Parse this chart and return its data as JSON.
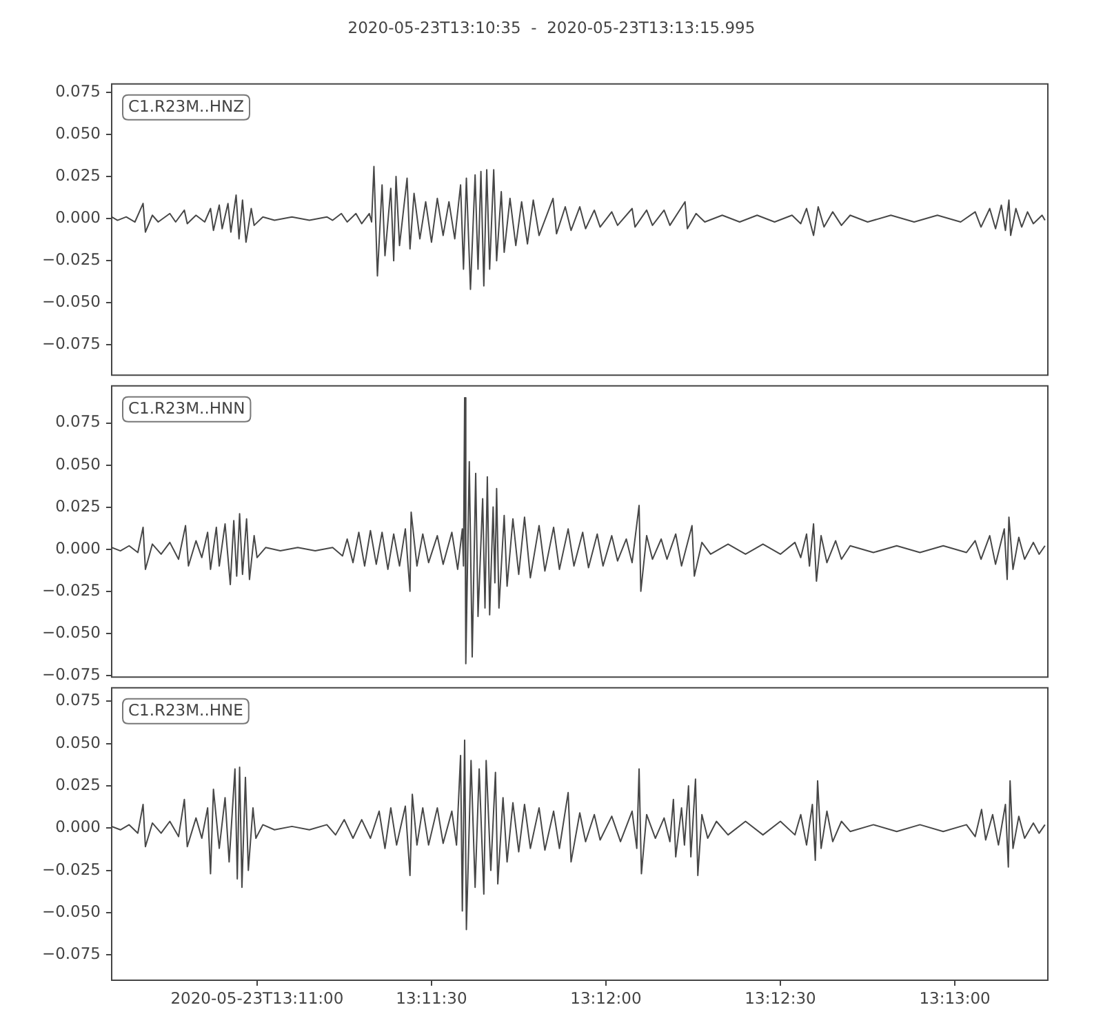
{
  "chart_data": [
    {
      "type": "line",
      "title": "2020-05-23T13:10:35  -  2020-05-23T13:13:15.995",
      "annotations": [
        "C1.R23M..HNZ"
      ],
      "tick_labels": "y",
      "xlim": [
        "2020-05-23T13:10:35",
        "2020-05-23T13:13:15.995"
      ],
      "ylim": [
        -0.093,
        0.08
      ],
      "yticks": [
        {
          "value": -0.075,
          "label": "−0.075"
        },
        {
          "value": -0.05,
          "label": "−0.050"
        },
        {
          "value": -0.025,
          "label": "−0.025"
        },
        {
          "value": 0,
          "label": "0.000"
        },
        {
          "value": 0.025,
          "label": "0.025"
        },
        {
          "value": 0.05,
          "label": "0.050"
        },
        {
          "value": 0.075,
          "label": "0.075"
        }
      ],
      "series": [
        {
          "color": "#474747",
          "x": [
            "2020-05-23T13:10:35",
            "2020-05-23T13:10:36",
            "2020-05-23T13:10:37.5",
            "2020-05-23T13:10:39",
            "2020-05-23T13:10:40.4",
            "2020-05-23T13:10:40.8",
            "2020-05-23T13:10:42",
            "2020-05-23T13:10:43",
            "2020-05-23T13:10:45",
            "2020-05-23T13:10:46",
            "2020-05-23T13:10:47.5",
            "2020-05-23T13:10:48",
            "2020-05-23T13:10:49.5",
            "2020-05-23T13:10:51",
            "2020-05-23T13:10:52",
            "2020-05-23T13:10:52.5",
            "2020-05-23T13:10:53.5",
            "2020-05-23T13:10:54",
            "2020-05-23T13:10:55",
            "2020-05-23T13:10:55.5",
            "2020-05-23T13:10:56.4",
            "2020-05-23T13:10:56.9",
            "2020-05-23T13:10:57.5",
            "2020-05-23T13:10:58.1",
            "2020-05-23T13:10:59",
            "2020-05-23T13:10:59.5",
            "2020-05-23T13:11:01",
            "2020-05-23T13:11:03",
            "2020-05-23T13:11:06",
            "2020-05-23T13:11:09",
            "2020-05-23T13:11:12",
            "2020-05-23T13:11:13",
            "2020-05-23T13:11:14.5",
            "2020-05-23T13:11:15.5",
            "2020-05-23T13:11:17",
            "2020-05-23T13:11:18",
            "2020-05-23T13:11:19.3",
            "2020-05-23T13:11:19.7",
            "2020-05-23T13:11:20.1",
            "2020-05-23T13:11:20.7",
            "2020-05-23T13:11:21.5",
            "2020-05-23T13:11:22",
            "2020-05-23T13:11:23",
            "2020-05-23T13:11:23.5",
            "2020-05-23T13:11:23.9",
            "2020-05-23T13:11:24.5",
            "2020-05-23T13:11:25.8",
            "2020-05-23T13:11:26.3",
            "2020-05-23T13:11:27",
            "2020-05-23T13:11:28",
            "2020-05-23T13:11:29",
            "2020-05-23T13:11:30",
            "2020-05-23T13:11:31",
            "2020-05-23T13:11:32",
            "2020-05-23T13:11:33",
            "2020-05-23T13:11:34",
            "2020-05-23T13:11:35",
            "2020-05-23T13:11:35.5",
            "2020-05-23T13:11:36",
            "2020-05-23T13:11:36.7",
            "2020-05-23T13:11:37.5",
            "2020-05-23T13:11:38",
            "2020-05-23T13:11:38.5",
            "2020-05-23T13:11:39",
            "2020-05-23T13:11:39.5",
            "2020-05-23T13:11:40",
            "2020-05-23T13:11:40.7",
            "2020-05-23T13:11:41.2",
            "2020-05-23T13:11:42",
            "2020-05-23T13:11:42.5",
            "2020-05-23T13:11:43.5",
            "2020-05-23T13:11:44.5",
            "2020-05-23T13:11:45.5",
            "2020-05-23T13:11:46.5",
            "2020-05-23T13:11:47.5",
            "2020-05-23T13:11:48.5",
            "2020-05-23T13:11:50.9",
            "2020-05-23T13:11:51.5",
            "2020-05-23T13:11:53",
            "2020-05-23T13:11:54",
            "2020-05-23T13:11:55.5",
            "2020-05-23T13:11:56.5",
            "2020-05-23T13:11:58",
            "2020-05-23T13:11:59",
            "2020-05-23T13:12:01",
            "2020-05-23T13:12:02",
            "2020-05-23T13:12:04.5",
            "2020-05-23T13:12:05",
            "2020-05-23T13:12:07",
            "2020-05-23T13:12:08",
            "2020-05-23T13:12:10",
            "2020-05-23T13:12:11",
            "2020-05-23T13:12:13.6",
            "2020-05-23T13:12:14",
            "2020-05-23T13:12:15.5",
            "2020-05-23T13:12:17",
            "2020-05-23T13:12:20",
            "2020-05-23T13:12:23",
            "2020-05-23T13:12:26",
            "2020-05-23T13:12:29",
            "2020-05-23T13:12:32",
            "2020-05-23T13:12:33.5",
            "2020-05-23T13:12:34.5",
            "2020-05-23T13:12:35.7",
            "2020-05-23T13:12:36.5",
            "2020-05-23T13:12:37.5",
            "2020-05-23T13:12:39",
            "2020-05-23T13:12:40.5",
            "2020-05-23T13:12:42",
            "2020-05-23T13:12:45",
            "2020-05-23T13:12:49",
            "2020-05-23T13:12:53",
            "2020-05-23T13:12:57",
            "2020-05-23T13:13:01",
            "2020-05-23T13:13:03.5",
            "2020-05-23T13:13:04.5",
            "2020-05-23T13:13:06",
            "2020-05-23T13:13:07",
            "2020-05-23T13:13:08",
            "2020-05-23T13:13:08.7",
            "2020-05-23T13:13:09.3",
            "2020-05-23T13:13:09.6",
            "2020-05-23T13:13:10.5",
            "2020-05-23T13:13:11.5",
            "2020-05-23T13:13:12.5",
            "2020-05-23T13:13:13.5",
            "2020-05-23T13:13:15",
            "2020-05-23T13:13:15.5"
          ],
          "values": [
            0.001,
            -0.001,
            0.001,
            -0.002,
            0.009,
            -0.008,
            0.002,
            -0.002,
            0.003,
            -0.002,
            0.005,
            -0.003,
            0.002,
            -0.002,
            0.006,
            -0.007,
            0.008,
            -0.006,
            0.009,
            -0.008,
            0.014,
            -0.012,
            0.011,
            -0.014,
            0.006,
            -0.004,
            0.001,
            -0.001,
            0.001,
            -0.001,
            0.001,
            -0.001,
            0.003,
            -0.002,
            0.003,
            -0.003,
            0.003,
            -0.002,
            0.031,
            -0.034,
            0.02,
            -0.022,
            0.018,
            -0.025,
            0.025,
            -0.016,
            0.024,
            -0.018,
            0.015,
            -0.012,
            0.01,
            -0.014,
            0.012,
            -0.01,
            0.01,
            -0.012,
            0.02,
            -0.03,
            0.024,
            -0.042,
            0.026,
            -0.03,
            0.028,
            -0.04,
            0.029,
            -0.03,
            0.029,
            -0.025,
            0.016,
            -0.02,
            0.012,
            -0.016,
            0.01,
            -0.015,
            0.011,
            -0.01,
            0.012,
            -0.009,
            0.007,
            -0.007,
            0.007,
            -0.006,
            0.005,
            -0.005,
            0.004,
            -0.004,
            0.006,
            -0.005,
            0.005,
            -0.004,
            0.005,
            -0.004,
            0.01,
            -0.006,
            0.003,
            -0.002,
            0.002,
            -0.002,
            0.002,
            -0.002,
            0.002,
            -0.003,
            0.006,
            -0.01,
            0.007,
            -0.005,
            0.004,
            -0.004,
            0.002,
            -0.002,
            0.002,
            -0.002,
            0.002,
            -0.002,
            0.004,
            -0.005,
            0.006,
            -0.006,
            0.008,
            -0.007,
            0.011,
            -0.01,
            0.006,
            -0.005,
            0.004,
            -0.003,
            0.002,
            -0.001
          ]
        }
      ]
    },
    {
      "type": "line",
      "annotations": [
        "C1.R23M..HNN"
      ],
      "tick_labels": "y",
      "xlim": [
        "2020-05-23T13:10:35",
        "2020-05-23T13:13:15.995"
      ],
      "ylim": [
        -0.076,
        0.097
      ],
      "yticks": [
        {
          "value": -0.075,
          "label": "−0.075"
        },
        {
          "value": -0.05,
          "label": "−0.050"
        },
        {
          "value": -0.025,
          "label": "−0.025"
        },
        {
          "value": 0,
          "label": "0.000"
        },
        {
          "value": 0.025,
          "label": "0.025"
        },
        {
          "value": 0.05,
          "label": "0.050"
        },
        {
          "value": 0.075,
          "label": "0.075"
        }
      ],
      "series": [
        {
          "color": "#474747",
          "x": [
            "2020-05-23T13:10:35",
            "2020-05-23T13:10:36.5",
            "2020-05-23T13:10:38",
            "2020-05-23T13:10:39.5",
            "2020-05-23T13:10:40.4",
            "2020-05-23T13:10:40.8",
            "2020-05-23T13:10:42",
            "2020-05-23T13:10:43.5",
            "2020-05-23T13:10:45",
            "2020-05-23T13:10:46.5",
            "2020-05-23T13:10:47.7",
            "2020-05-23T13:10:48.2",
            "2020-05-23T13:10:49.5",
            "2020-05-23T13:10:50.5",
            "2020-05-23T13:10:51.5",
            "2020-05-23T13:10:52",
            "2020-05-23T13:10:53",
            "2020-05-23T13:10:53.5",
            "2020-05-23T13:10:54.5",
            "2020-05-23T13:10:55.4",
            "2020-05-23T13:10:56",
            "2020-05-23T13:10:56.5",
            "2020-05-23T13:10:57",
            "2020-05-23T13:10:57.5",
            "2020-05-23T13:10:58.2",
            "2020-05-23T13:10:58.7",
            "2020-05-23T13:10:59.5",
            "2020-05-23T13:11:00",
            "2020-05-23T13:11:01.5",
            "2020-05-23T13:11:04",
            "2020-05-23T13:11:07",
            "2020-05-23T13:11:10",
            "2020-05-23T13:11:13",
            "2020-05-23T13:11:14.7",
            "2020-05-23T13:11:15.5",
            "2020-05-23T13:11:16.5",
            "2020-05-23T13:11:17.5",
            "2020-05-23T13:11:18.5",
            "2020-05-23T13:11:19.5",
            "2020-05-23T13:11:20.5",
            "2020-05-23T13:11:21.5",
            "2020-05-23T13:11:22.5",
            "2020-05-23T13:11:23.5",
            "2020-05-23T13:11:24.5",
            "2020-05-23T13:11:25.5",
            "2020-05-23T13:11:26.3",
            "2020-05-23T13:11:26.5",
            "2020-05-23T13:11:27.5",
            "2020-05-23T13:11:28.5",
            "2020-05-23T13:11:29.5",
            "2020-05-23T13:11:31",
            "2020-05-23T13:11:32",
            "2020-05-23T13:11:33.5",
            "2020-05-23T13:11:34.5",
            "2020-05-23T13:11:35.3",
            "2020-05-23T13:11:35.5",
            "2020-05-23T13:11:35.7",
            "2020-05-23T13:11:35.9",
            "2020-05-23T13:11:36.5",
            "2020-05-23T13:11:37",
            "2020-05-23T13:11:37.6",
            "2020-05-23T13:11:38",
            "2020-05-23T13:11:38.8",
            "2020-05-23T13:11:39.2",
            "2020-05-23T13:11:39.6",
            "2020-05-23T13:11:40",
            "2020-05-23T13:11:40.6",
            "2020-05-23T13:11:40.9",
            "2020-05-23T13:11:41.2",
            "2020-05-23T13:11:41.6",
            "2020-05-23T13:11:42.5",
            "2020-05-23T13:11:43",
            "2020-05-23T13:11:44",
            "2020-05-23T13:11:45",
            "2020-05-23T13:11:46",
            "2020-05-23T13:11:47",
            "2020-05-23T13:11:48.5",
            "2020-05-23T13:11:49.5",
            "2020-05-23T13:11:51",
            "2020-05-23T13:11:52",
            "2020-05-23T13:11:53.5",
            "2020-05-23T13:11:54.5",
            "2020-05-23T13:11:56",
            "2020-05-23T13:11:57",
            "2020-05-23T13:11:58.5",
            "2020-05-23T13:11:59.5",
            "2020-05-23T13:12:01",
            "2020-05-23T13:12:02",
            "2020-05-23T13:12:03.5",
            "2020-05-23T13:12:04.5",
            "2020-05-23T13:12:05.7",
            "2020-05-23T13:12:06",
            "2020-05-23T13:12:07",
            "2020-05-23T13:12:08",
            "2020-05-23T13:12:09.5",
            "2020-05-23T13:12:10.5",
            "2020-05-23T13:12:12",
            "2020-05-23T13:12:13",
            "2020-05-23T13:12:14.8",
            "2020-05-23T13:12:15.2",
            "2020-05-23T13:12:16.5",
            "2020-05-23T13:12:18",
            "2020-05-23T13:12:21",
            "2020-05-23T13:12:24",
            "2020-05-23T13:12:27",
            "2020-05-23T13:12:30",
            "2020-05-23T13:12:32.5",
            "2020-05-23T13:12:33.5",
            "2020-05-23T13:12:34.5",
            "2020-05-23T13:12:35",
            "2020-05-23T13:12:35.7",
            "2020-05-23T13:12:36.2",
            "2020-05-23T13:12:37",
            "2020-05-23T13:12:38",
            "2020-05-23T13:12:39.5",
            "2020-05-23T13:12:40.5",
            "2020-05-23T13:12:42",
            "2020-05-23T13:12:46",
            "2020-05-23T13:12:50",
            "2020-05-23T13:12:54",
            "2020-05-23T13:12:58",
            "2020-05-23T13:13:02",
            "2020-05-23T13:13:03.5",
            "2020-05-23T13:13:04.5",
            "2020-05-23T13:13:06",
            "2020-05-23T13:13:07",
            "2020-05-23T13:13:08.5",
            "2020-05-23T13:13:09",
            "2020-05-23T13:13:09.3",
            "2020-05-23T13:13:10",
            "2020-05-23T13:13:11",
            "2020-05-23T13:13:12",
            "2020-05-23T13:13:13.5",
            "2020-05-23T13:13:14.5",
            "2020-05-23T13:13:15.5"
          ],
          "values": [
            0.001,
            -0.001,
            0.002,
            -0.002,
            0.013,
            -0.012,
            0.003,
            -0.003,
            0.004,
            -0.006,
            0.014,
            -0.01,
            0.005,
            -0.005,
            0.01,
            -0.012,
            0.013,
            -0.01,
            0.015,
            -0.021,
            0.017,
            -0.016,
            0.021,
            -0.015,
            0.018,
            -0.018,
            0.008,
            -0.005,
            0.001,
            -0.001,
            0.001,
            -0.001,
            0.001,
            -0.004,
            0.006,
            -0.008,
            0.01,
            -0.01,
            0.011,
            -0.009,
            0.01,
            -0.012,
            0.009,
            -0.01,
            0.012,
            -0.025,
            0.022,
            -0.01,
            0.009,
            -0.008,
            0.008,
            -0.009,
            0.01,
            -0.012,
            0.012,
            -0.01,
            0.09,
            -0.068,
            0.052,
            -0.064,
            0.045,
            -0.04,
            0.03,
            -0.035,
            0.043,
            -0.039,
            0.025,
            -0.02,
            0.036,
            -0.035,
            0.02,
            -0.022,
            0.018,
            -0.015,
            0.019,
            -0.017,
            0.014,
            -0.013,
            0.013,
            -0.012,
            0.012,
            -0.01,
            0.01,
            -0.011,
            0.009,
            -0.01,
            0.008,
            -0.007,
            0.006,
            -0.008,
            0.026,
            -0.025,
            0.008,
            -0.006,
            0.006,
            -0.006,
            0.009,
            -0.01,
            0.014,
            -0.016,
            0.004,
            -0.003,
            0.003,
            -0.003,
            0.003,
            -0.003,
            0.004,
            -0.005,
            0.009,
            -0.01,
            0.015,
            -0.019,
            0.008,
            -0.008,
            0.005,
            -0.006,
            0.002,
            -0.002,
            0.002,
            -0.002,
            0.002,
            -0.002,
            0.005,
            -0.006,
            0.008,
            -0.009,
            0.012,
            -0.018,
            0.019,
            -0.012,
            0.007,
            -0.006,
            0.004,
            -0.003,
            0.002
          ]
        }
      ]
    },
    {
      "type": "line",
      "annotations": [
        "C1.R23M..HNE"
      ],
      "xlim": [
        "2020-05-23T13:10:35",
        "2020-05-23T13:13:15.995"
      ],
      "ylim": [
        -0.09,
        0.083
      ],
      "xticks": [
        {
          "value": "2020-05-23T13:11:00",
          "label": "2020-05-23T13:11:00"
        },
        {
          "value": "2020-05-23T13:11:30",
          "label": "13:11:30"
        },
        {
          "value": "2020-05-23T13:12:00",
          "label": "13:12:00"
        },
        {
          "value": "2020-05-23T13:12:30",
          "label": "13:12:30"
        },
        {
          "value": "2020-05-23T13:13:00",
          "label": "13:13:00"
        }
      ],
      "yticks": [
        {
          "value": -0.075,
          "label": "−0.075"
        },
        {
          "value": -0.05,
          "label": "−0.050"
        },
        {
          "value": -0.025,
          "label": "−0.025"
        },
        {
          "value": 0,
          "label": "0.000"
        },
        {
          "value": 0.025,
          "label": "0.025"
        },
        {
          "value": 0.05,
          "label": "0.050"
        },
        {
          "value": 0.075,
          "label": "0.075"
        }
      ],
      "series": [
        {
          "color": "#474747",
          "x": [
            "2020-05-23T13:10:35",
            "2020-05-23T13:10:36.5",
            "2020-05-23T13:10:38",
            "2020-05-23T13:10:39.5",
            "2020-05-23T13:10:40.4",
            "2020-05-23T13:10:40.8",
            "2020-05-23T13:10:42",
            "2020-05-23T13:10:43.5",
            "2020-05-23T13:10:45",
            "2020-05-23T13:10:46.5",
            "2020-05-23T13:10:47.5",
            "2020-05-23T13:10:48",
            "2020-05-23T13:10:49.5",
            "2020-05-23T13:10:50.5",
            "2020-05-23T13:10:51.5",
            "2020-05-23T13:10:52",
            "2020-05-23T13:10:52.5",
            "2020-05-23T13:10:53.5",
            "2020-05-23T13:10:54.5",
            "2020-05-23T13:10:55.2",
            "2020-05-23T13:10:56.2",
            "2020-05-23T13:10:56.6",
            "2020-05-23T13:10:57",
            "2020-05-23T13:10:57.4",
            "2020-05-23T13:10:58",
            "2020-05-23T13:10:58.5",
            "2020-05-23T13:10:59.3",
            "2020-05-23T13:10:59.8",
            "2020-05-23T13:11:01",
            "2020-05-23T13:11:03",
            "2020-05-23T13:11:06",
            "2020-05-23T13:11:09",
            "2020-05-23T13:11:12",
            "2020-05-23T13:11:13.5",
            "2020-05-23T13:11:15",
            "2020-05-23T13:11:16.5",
            "2020-05-23T13:11:18",
            "2020-05-23T13:11:19.5",
            "2020-05-23T13:11:21",
            "2020-05-23T13:11:22",
            "2020-05-23T13:11:23",
            "2020-05-23T13:11:24",
            "2020-05-23T13:11:25.5",
            "2020-05-23T13:11:26.3",
            "2020-05-23T13:11:26.7",
            "2020-05-23T13:11:27.5",
            "2020-05-23T13:11:28.5",
            "2020-05-23T13:11:29.5",
            "2020-05-23T13:11:31",
            "2020-05-23T13:11:32",
            "2020-05-23T13:11:33.5",
            "2020-05-23T13:11:34.3",
            "2020-05-23T13:11:35",
            "2020-05-23T13:11:35.3",
            "2020-05-23T13:11:35.7",
            "2020-05-23T13:11:36",
            "2020-05-23T13:11:36.8",
            "2020-05-23T13:11:37.5",
            "2020-05-23T13:11:38.2",
            "2020-05-23T13:11:39",
            "2020-05-23T13:11:39.4",
            "2020-05-23T13:11:40.2",
            "2020-05-23T13:11:41",
            "2020-05-23T13:11:41.4",
            "2020-05-23T13:11:42.3",
            "2020-05-23T13:11:43",
            "2020-05-23T13:11:44",
            "2020-05-23T13:11:45",
            "2020-05-23T13:11:46",
            "2020-05-23T13:11:47",
            "2020-05-23T13:11:48.5",
            "2020-05-23T13:11:49.5",
            "2020-05-23T13:11:51",
            "2020-05-23T13:11:52",
            "2020-05-23T13:11:53.5",
            "2020-05-23T13:11:54",
            "2020-05-23T13:11:55.5",
            "2020-05-23T13:11:56.5",
            "2020-05-23T13:11:58",
            "2020-05-23T13:11:59",
            "2020-05-23T13:12:01",
            "2020-05-23T13:12:02.5",
            "2020-05-23T13:12:04.5",
            "2020-05-23T13:12:05.3",
            "2020-05-23T13:12:05.7",
            "2020-05-23T13:12:06.1",
            "2020-05-23T13:12:07",
            "2020-05-23T13:12:08.5",
            "2020-05-23T13:12:10",
            "2020-05-23T13:12:11",
            "2020-05-23T13:12:11.6",
            "2020-05-23T13:12:12",
            "2020-05-23T13:12:13",
            "2020-05-23T13:12:13.5",
            "2020-05-23T13:12:14.2",
            "2020-05-23T13:12:14.6",
            "2020-05-23T13:12:15.4",
            "2020-05-23T13:12:15.8",
            "2020-05-23T13:12:16.5",
            "2020-05-23T13:12:17.5",
            "2020-05-23T13:12:19",
            "2020-05-23T13:12:21",
            "2020-05-23T13:12:24",
            "2020-05-23T13:12:27",
            "2020-05-23T13:12:30",
            "2020-05-23T13:12:32.5",
            "2020-05-23T13:12:33.5",
            "2020-05-23T13:12:34.5",
            "2020-05-23T13:12:35.5",
            "2020-05-23T13:12:36",
            "2020-05-23T13:12:36.4",
            "2020-05-23T13:12:37",
            "2020-05-23T13:12:38",
            "2020-05-23T13:12:39",
            "2020-05-23T13:12:40.5",
            "2020-05-23T13:12:42",
            "2020-05-23T13:12:46",
            "2020-05-23T13:12:50",
            "2020-05-23T13:12:54",
            "2020-05-23T13:12:58",
            "2020-05-23T13:13:02",
            "2020-05-23T13:13:03.5",
            "2020-05-23T13:13:04.6",
            "2020-05-23T13:13:05.3",
            "2020-05-23T13:13:06.5",
            "2020-05-23T13:13:07.5",
            "2020-05-23T13:13:08.7",
            "2020-05-23T13:13:09.2",
            "2020-05-23T13:13:09.5",
            "2020-05-23T13:13:10",
            "2020-05-23T13:13:11",
            "2020-05-23T13:13:12",
            "2020-05-23T13:13:13.5",
            "2020-05-23T13:13:14.5",
            "2020-05-23T13:13:15.5"
          ],
          "values": [
            0.001,
            -0.001,
            0.002,
            -0.003,
            0.014,
            -0.011,
            0.003,
            -0.003,
            0.004,
            -0.005,
            0.017,
            -0.011,
            0.006,
            -0.006,
            0.012,
            -0.027,
            0.023,
            -0.012,
            0.018,
            -0.02,
            0.035,
            -0.03,
            0.036,
            -0.035,
            0.03,
            -0.025,
            0.012,
            -0.006,
            0.002,
            -0.001,
            0.001,
            -0.001,
            0.002,
            -0.004,
            0.005,
            -0.006,
            0.005,
            -0.006,
            0.01,
            -0.012,
            0.012,
            -0.01,
            0.013,
            -0.028,
            0.02,
            -0.01,
            0.012,
            -0.01,
            0.012,
            -0.009,
            0.01,
            -0.01,
            0.043,
            -0.049,
            0.052,
            -0.06,
            0.04,
            -0.035,
            0.035,
            -0.039,
            0.04,
            -0.025,
            0.033,
            -0.033,
            0.018,
            -0.02,
            0.015,
            -0.014,
            0.014,
            -0.012,
            0.012,
            -0.013,
            0.01,
            -0.012,
            0.021,
            -0.02,
            0.009,
            -0.008,
            0.008,
            -0.007,
            0.007,
            -0.008,
            0.01,
            -0.012,
            0.035,
            -0.027,
            0.008,
            -0.006,
            0.006,
            -0.008,
            0.017,
            -0.017,
            0.012,
            -0.01,
            0.025,
            -0.017,
            0.029,
            -0.028,
            0.008,
            -0.006,
            0.004,
            -0.004,
            0.004,
            -0.004,
            0.004,
            -0.004,
            0.008,
            -0.01,
            0.014,
            -0.019,
            0.028,
            -0.012,
            0.01,
            -0.008,
            0.004,
            -0.002,
            0.002,
            -0.002,
            0.002,
            -0.002,
            0.002,
            -0.005,
            0.011,
            -0.007,
            0.008,
            -0.01,
            0.014,
            -0.023,
            0.028,
            -0.012,
            0.007,
            -0.006,
            0.003,
            -0.003,
            0.002
          ]
        }
      ]
    }
  ]
}
